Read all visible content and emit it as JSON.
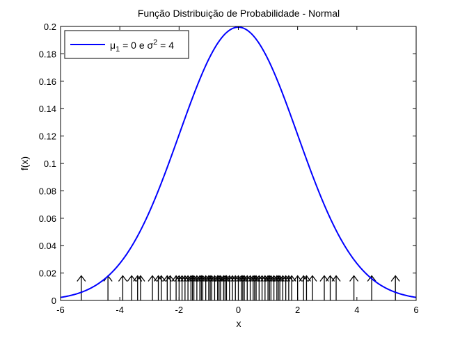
{
  "chart_data": {
    "type": "line",
    "title": "Função Distribuição de Probabilidade - Normal",
    "xlabel": "x",
    "ylabel": "f(x)",
    "xlim": [
      -6,
      6
    ],
    "ylim": [
      0,
      0.2
    ],
    "x_ticks": [
      "-6",
      "-4",
      "-2",
      "0",
      "2",
      "4",
      "6"
    ],
    "y_ticks": [
      "0",
      "0.02",
      "0.04",
      "0.06",
      "0.08",
      "0.1",
      "0.12",
      "0.14",
      "0.16",
      "0.18",
      "0.2"
    ],
    "grid": false,
    "legend_position": "top-left",
    "legend": {
      "mu_symbol": "μ",
      "mu_subscript": "1",
      "middle": " = 0 e ",
      "sigma_symbol": "σ",
      "sigma_superscript": "2",
      "end": " = 4"
    },
    "series": [
      {
        "kind": "pdf-curve",
        "color": "#0000ff",
        "mean": 0,
        "variance": 4
      }
    ],
    "samples": {
      "marker": "up-arrow",
      "color": "#000000",
      "arrow_height": 0.018,
      "x": [
        -5.3,
        -4.4,
        -3.9,
        -3.6,
        -3.4,
        -3.3,
        -2.9,
        -2.7,
        -2.6,
        -2.4,
        -2.3,
        -2.1,
        -2.0,
        -1.9,
        -1.8,
        -1.7,
        -1.6,
        -1.55,
        -1.5,
        -1.4,
        -1.3,
        -1.25,
        -1.2,
        -1.1,
        -1.0,
        -0.95,
        -0.9,
        -0.8,
        -0.7,
        -0.65,
        -0.6,
        -0.5,
        -0.45,
        -0.4,
        -0.3,
        -0.2,
        -0.1,
        0.0,
        0.1,
        0.15,
        0.2,
        0.3,
        0.4,
        0.5,
        0.55,
        0.6,
        0.7,
        0.8,
        0.9,
        1.0,
        1.05,
        1.1,
        1.2,
        1.3,
        1.35,
        1.4,
        1.5,
        1.6,
        1.7,
        1.8,
        2.0,
        2.2,
        2.3,
        2.5,
        2.9,
        3.1,
        3.3,
        3.9,
        4.5,
        5.3
      ]
    }
  }
}
